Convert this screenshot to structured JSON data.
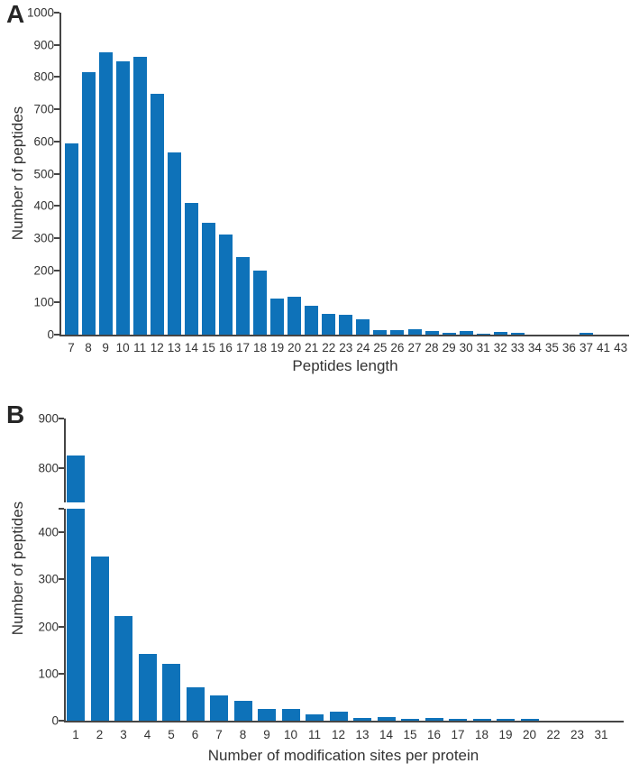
{
  "figure": {
    "background_color": "#ffffff",
    "bar_color": "#0e72b9",
    "axis_color": "#454545",
    "text_color": "#333333"
  },
  "chart_data": [
    {
      "panel_label": "A",
      "type": "bar",
      "title": "",
      "xlabel": "Peptides length",
      "ylabel": "Number of peptides",
      "categories": [
        "7",
        "8",
        "9",
        "10",
        "11",
        "12",
        "13",
        "14",
        "15",
        "16",
        "17",
        "18",
        "19",
        "20",
        "21",
        "22",
        "23",
        "24",
        "25",
        "26",
        "27",
        "28",
        "29",
        "30",
        "31",
        "32",
        "33",
        "34",
        "35",
        "36",
        "37",
        "41",
        "43"
      ],
      "values": [
        595,
        815,
        878,
        850,
        862,
        748,
        565,
        410,
        348,
        312,
        240,
        198,
        112,
        119,
        90,
        65,
        62,
        48,
        14,
        15,
        18,
        11,
        6,
        11,
        3,
        9,
        5,
        0,
        0,
        0,
        5,
        0,
        0
      ],
      "ylim": [
        0,
        1000
      ],
      "yticks": [
        0,
        100,
        200,
        300,
        400,
        500,
        600,
        700,
        800,
        900,
        1000
      ],
      "grid": "off",
      "legend": "none"
    },
    {
      "panel_label": "B",
      "type": "bar",
      "title": "",
      "xlabel": "Number of modification sites per protein",
      "ylabel": "Number of peptides",
      "categories": [
        "1",
        "2",
        "3",
        "4",
        "5",
        "6",
        "7",
        "8",
        "9",
        "10",
        "11",
        "12",
        "13",
        "14",
        "15",
        "16",
        "17",
        "18",
        "19",
        "20",
        "22",
        "23",
        "31"
      ],
      "values": [
        825,
        348,
        222,
        142,
        121,
        71,
        53,
        42,
        24,
        24,
        13,
        20,
        5,
        7,
        4,
        5,
        4,
        3,
        3,
        3,
        0,
        0,
        0
      ],
      "ylim": [
        0,
        900
      ],
      "axis_break": {
        "lower_max": 450,
        "upper_min": 730
      },
      "yticks_lower": [
        0,
        100,
        200,
        300,
        400
      ],
      "yticks_upper": [
        800,
        900
      ],
      "grid": "off",
      "legend": "none"
    }
  ]
}
